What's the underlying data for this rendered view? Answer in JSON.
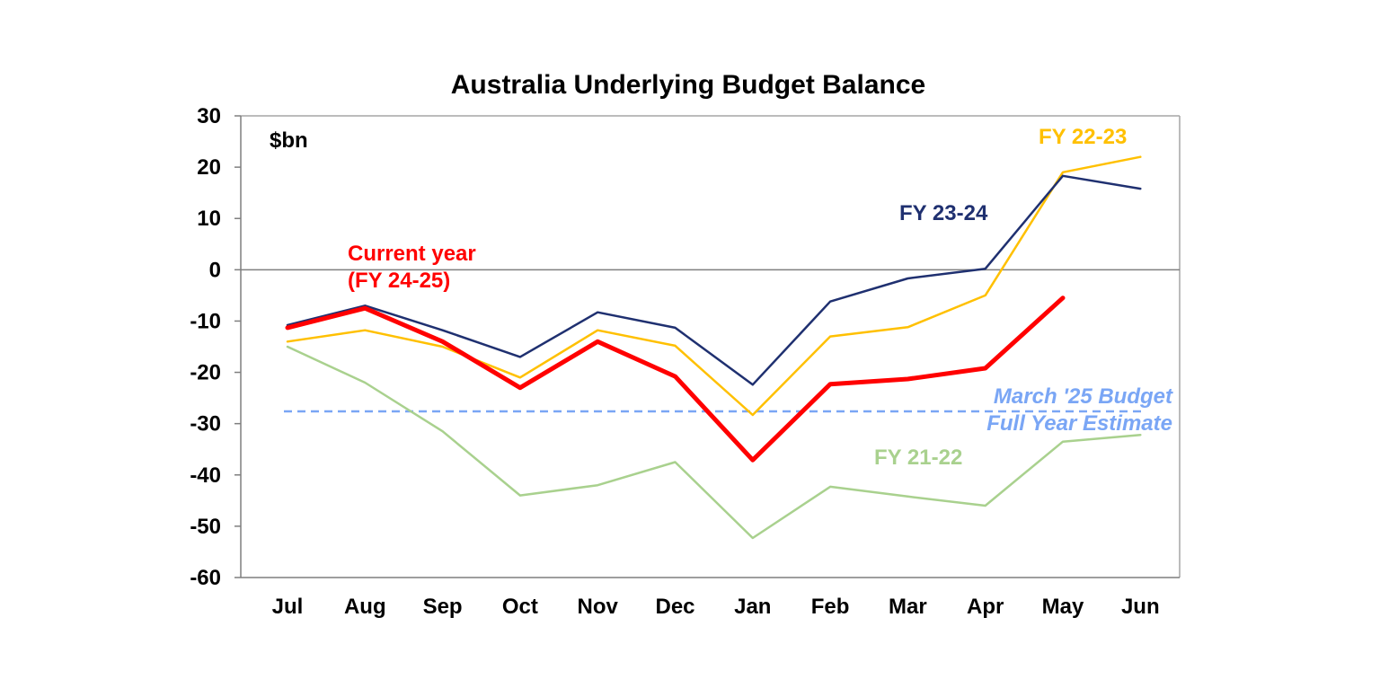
{
  "chart_data": {
    "type": "line",
    "title": "Australia Underlying Budget Balance",
    "unit_label": "$bn",
    "xlabel": "",
    "ylabel": "",
    "categories": [
      "Jul",
      "Aug",
      "Sep",
      "Oct",
      "Nov",
      "Dec",
      "Jan",
      "Feb",
      "Mar",
      "Apr",
      "May",
      "Jun"
    ],
    "yticks": [
      "30",
      "20",
      "10",
      "0",
      "-10",
      "-20",
      "-30",
      "-40",
      "-50",
      "-60"
    ],
    "ylim": [
      -60,
      30
    ],
    "grid": false,
    "legend": "none (direct labels)",
    "series": [
      {
        "name": "FY 21-22",
        "color": "#a9d18e",
        "values": [
          -15,
          -22,
          -31.5,
          -44,
          -42,
          -37.5,
          -52.3,
          -42.3,
          -44.2,
          -46,
          -33.5,
          -32.2
        ]
      },
      {
        "name": "FY 22-23",
        "color": "#ffc000",
        "values": [
          -14,
          -11.8,
          -15,
          -21,
          -11.8,
          -14.8,
          -28.3,
          -13,
          -11.2,
          -5,
          19,
          22
        ]
      },
      {
        "name": "FY 23-24",
        "color": "#1f3070",
        "values": [
          -10.8,
          -7,
          -11.8,
          -17,
          -8.3,
          -11.3,
          -22.4,
          -6.2,
          -1.7,
          0.2,
          18.3,
          15.8
        ]
      },
      {
        "name_lines": [
          "Current year",
          "(FY 24-25)"
        ],
        "color": "#ff0000",
        "values": [
          -11.3,
          -7.5,
          -14,
          -23,
          -14,
          -20.8,
          -37.1,
          -22.3,
          -21.3,
          -19.2,
          -5.5,
          null
        ]
      }
    ],
    "reference_line": {
      "label_lines": [
        "March '25 Budget",
        "Full Year Estimate"
      ],
      "value": -27.6,
      "color": "#7aa6f5",
      "style": "dashed"
    }
  }
}
